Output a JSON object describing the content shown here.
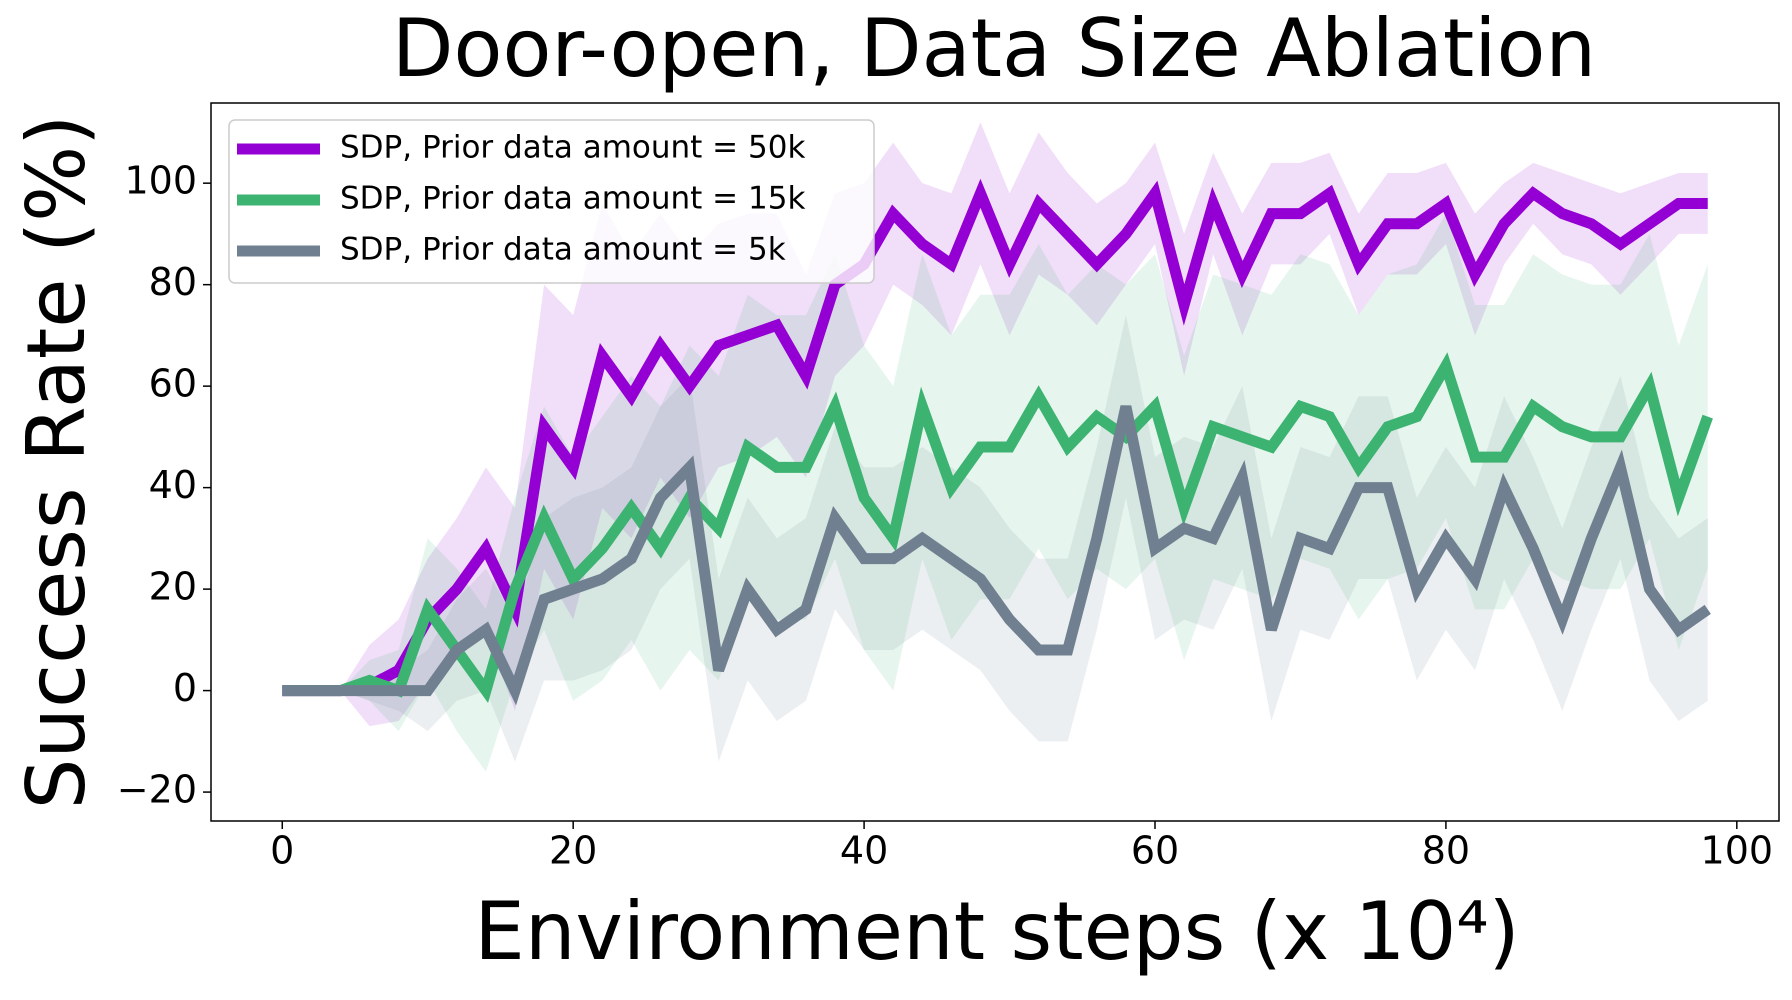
{
  "chart_data": {
    "type": "line",
    "title": "Door-open, Data Size Ablation",
    "xlabel": "Environment steps (x 10⁴)",
    "ylabel": "Success Rate (%)",
    "x": [
      0,
      2,
      4,
      6,
      8,
      10,
      12,
      14,
      16,
      18,
      20,
      22,
      24,
      26,
      28,
      30,
      32,
      34,
      36,
      38,
      40,
      42,
      44,
      46,
      48,
      50,
      52,
      54,
      56,
      58,
      60,
      62,
      64,
      66,
      68,
      70,
      72,
      74,
      76,
      78,
      80,
      82,
      84,
      86,
      88,
      90,
      92,
      94,
      96,
      98
    ],
    "series": [
      {
        "name": "SDP, Prior data amount = 50k",
        "color": "#9400d3",
        "values": [
          0,
          0,
          0,
          1,
          4,
          14,
          20,
          28,
          16,
          52,
          44,
          66,
          58,
          68,
          60,
          68,
          70,
          72,
          62,
          80,
          84,
          94,
          88,
          84,
          98,
          84,
          96,
          90,
          84,
          90,
          98,
          76,
          96,
          82,
          94,
          94,
          98,
          84,
          92,
          92,
          96,
          82,
          92,
          98,
          94,
          92,
          88,
          92,
          96,
          96
        ],
        "std": [
          0,
          0,
          0,
          8,
          10,
          12,
          14,
          16,
          20,
          28,
          30,
          30,
          28,
          26,
          26,
          24,
          24,
          22,
          20,
          18,
          16,
          14,
          12,
          14,
          14,
          14,
          14,
          12,
          12,
          10,
          10,
          14,
          10,
          12,
          10,
          10,
          8,
          10,
          10,
          10,
          8,
          12,
          8,
          6,
          8,
          8,
          10,
          8,
          6,
          6
        ]
      },
      {
        "name": "SDP, Prior data amount = 15k",
        "color": "#3cb371",
        "values": [
          0,
          0,
          0,
          2,
          0,
          16,
          8,
          0,
          20,
          34,
          22,
          28,
          36,
          28,
          38,
          32,
          48,
          44,
          44,
          56,
          38,
          30,
          56,
          40,
          48,
          48,
          58,
          48,
          54,
          50,
          56,
          36,
          52,
          50,
          48,
          56,
          54,
          44,
          52,
          54,
          64,
          46,
          46,
          56,
          52,
          50,
          50,
          60,
          38,
          54
        ],
        "std": [
          0,
          0,
          0,
          4,
          8,
          14,
          16,
          16,
          18,
          22,
          24,
          26,
          26,
          28,
          30,
          30,
          30,
          30,
          30,
          30,
          30,
          30,
          30,
          30,
          30,
          30,
          30,
          30,
          30,
          30,
          30,
          30,
          30,
          30,
          30,
          30,
          30,
          30,
          30,
          30,
          30,
          30,
          30,
          30,
          30,
          30,
          30,
          30,
          30,
          30
        ]
      },
      {
        "name": "SDP, Prior data amount = 5k",
        "color": "#708090",
        "values": [
          0,
          0,
          0,
          0,
          0,
          0,
          8,
          12,
          0,
          18,
          20,
          22,
          26,
          38,
          44,
          4,
          20,
          12,
          16,
          34,
          26,
          26,
          30,
          26,
          22,
          14,
          8,
          8,
          30,
          56,
          28,
          32,
          30,
          42,
          12,
          30,
          28,
          40,
          40,
          20,
          30,
          22,
          40,
          28,
          14,
          30,
          44,
          20,
          12,
          16
        ],
        "std": [
          0,
          0,
          0,
          2,
          4,
          8,
          10,
          12,
          14,
          16,
          18,
          18,
          18,
          18,
          18,
          18,
          18,
          18,
          18,
          18,
          18,
          18,
          18,
          18,
          18,
          18,
          18,
          18,
          18,
          18,
          18,
          18,
          18,
          18,
          18,
          18,
          18,
          18,
          18,
          18,
          18,
          18,
          18,
          18,
          18,
          18,
          18,
          18,
          18,
          18
        ]
      }
    ],
    "xlim": [
      -4.9,
      102.9
    ],
    "xticks": [
      0,
      20,
      40,
      60,
      80,
      100
    ],
    "ylim": [
      -25.7,
      115.8
    ],
    "yticks": [
      {
        "value": -20,
        "label": "−20"
      },
      0,
      20,
      40,
      60,
      80,
      100
    ],
    "legend": "upper left",
    "band_opacity": 0.13
  }
}
